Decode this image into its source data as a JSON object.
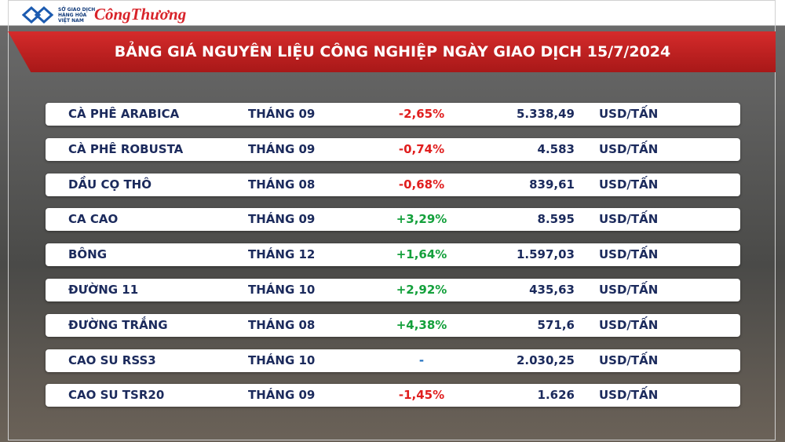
{
  "header": {
    "logo_lines": [
      "SỞ GIAO DỊCH",
      "HÀNG HÓA",
      "VIỆT NAM"
    ],
    "brand": "CôngThương",
    "title": "BẢNG GIÁ NGUYÊN LIỆU CÔNG NGHIỆP NGÀY GIAO DỊCH 15/7/2024"
  },
  "table": {
    "rows": [
      [
        "CÀ PHÊ ARABICA",
        "THÁNG 09",
        "-2,65%",
        "5.338,49",
        "USD/TẤN"
      ],
      [
        "CÀ PHÊ ROBUSTA",
        "THÁNG 09",
        "-0,74%",
        "4.583",
        "USD/TẤN"
      ],
      [
        "DẦU CỌ THÔ",
        "THÁNG 08",
        "-0,68%",
        "839,61",
        "USD/TẤN"
      ],
      [
        "CA CAO",
        "THÁNG 09",
        "+3,29%",
        "8.595",
        "USD/TẤN"
      ],
      [
        "BÔNG",
        "THÁNG 12",
        "+1,64%",
        "1.597,03",
        "USD/TẤN"
      ],
      [
        "ĐƯỜNG 11",
        "THÁNG 10",
        "+2,92%",
        "435,63",
        "USD/TẤN"
      ],
      [
        "ĐƯỜNG TRẮNG",
        "THÁNG 08",
        "+4,38%",
        "571,6",
        "USD/TẤN"
      ],
      [
        "CAO SU RSS3",
        "THÁNG 10",
        "-",
        "2.030,25",
        "USD/TẤN"
      ],
      [
        "CAO SU TSR20",
        "THÁNG 09",
        "-1,45%",
        "1.626",
        "USD/TẤN"
      ]
    ]
  }
}
